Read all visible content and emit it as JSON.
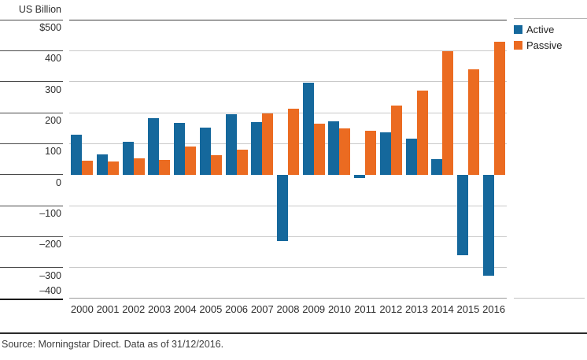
{
  "y_axis": {
    "unit_label": "US Billion",
    "tick_values": [
      500,
      400,
      300,
      200,
      100,
      0,
      -100,
      -200,
      -300,
      -400
    ],
    "tick_labels": [
      "$500",
      "400",
      "300",
      "200",
      "100",
      "0",
      "–100",
      "–200",
      "–300",
      "–400"
    ]
  },
  "legend": [
    {
      "label": "Active",
      "color": "#15689c"
    },
    {
      "label": "Passive",
      "color": "#eb6b21"
    }
  ],
  "footer": {
    "source_text": "Source: Morningstar Direct. Data as of 31/12/2016."
  },
  "chart_data": {
    "type": "bar",
    "title": "",
    "ylabel": "US Billion",
    "ylim": [
      -400,
      500
    ],
    "grid": true,
    "legend_position": "top-right",
    "categories": [
      2000,
      2001,
      2002,
      2003,
      2004,
      2005,
      2006,
      2007,
      2008,
      2009,
      2010,
      2011,
      2012,
      2013,
      2014,
      2015,
      2016
    ],
    "series": [
      {
        "name": "Active",
        "color": "#15689c",
        "values": [
          130,
          67,
          108,
          183,
          168,
          152,
          195,
          172,
          -212,
          298,
          174,
          -10,
          137,
          118,
          52,
          -258,
          -325
        ]
      },
      {
        "name": "Passive",
        "color": "#eb6b21",
        "values": [
          45,
          43,
          55,
          48,
          93,
          63,
          82,
          198,
          215,
          165,
          150,
          143,
          225,
          272,
          400,
          340,
          430
        ]
      }
    ]
  }
}
